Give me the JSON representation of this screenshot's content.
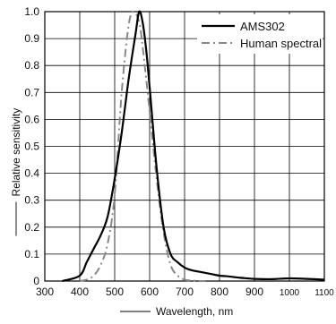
{
  "chart_data": {
    "type": "line",
    "xlabel": "Wavelength, nm",
    "ylabel": "Relative sensitivity",
    "xlim": [
      300,
      1100
    ],
    "ylim": [
      0,
      1.0
    ],
    "grid": true,
    "legend_position": "top-right",
    "x_ticks": [
      300,
      400,
      500,
      600,
      700,
      800,
      900,
      1000,
      1100
    ],
    "x_tick_labels": [
      "300",
      "400",
      "500",
      "600",
      "700",
      "800",
      "900",
      "1000",
      "1100"
    ],
    "y_ticks": [
      0,
      0.1,
      0.2,
      0.3,
      0.4,
      0.5,
      0.6,
      0.7,
      0.8,
      0.9,
      1.0
    ],
    "y_tick_labels": [
      "0",
      "0.1",
      "0.2",
      "0.3",
      "0.4",
      "0.5",
      "0.6",
      "0.7",
      "0.8",
      "0.9",
      "1.0"
    ],
    "series": [
      {
        "name": "AMS302",
        "style": "solid",
        "color": "#000000",
        "x": [
          350,
          400,
          420,
          440,
          460,
          480,
          500,
          520,
          540,
          560,
          570,
          580,
          590,
          600,
          620,
          640,
          660,
          680,
          700,
          720,
          740,
          760,
          780,
          800,
          820,
          840,
          860,
          880,
          900,
          950,
          1000,
          1050,
          1100
        ],
        "y": [
          0.0,
          0.02,
          0.07,
          0.12,
          0.17,
          0.24,
          0.38,
          0.55,
          0.75,
          0.92,
          1.0,
          0.96,
          0.86,
          0.72,
          0.42,
          0.2,
          0.1,
          0.07,
          0.05,
          0.04,
          0.035,
          0.03,
          0.025,
          0.02,
          0.018,
          0.015,
          0.012,
          0.01,
          0.008,
          0.007,
          0.01,
          0.008,
          0.005
        ]
      },
      {
        "name": "Human spectral",
        "style": "dash-dot",
        "color": "#888888",
        "x": [
          400,
          420,
          440,
          460,
          480,
          500,
          520,
          540,
          555,
          570,
          580,
          600,
          620,
          640,
          660,
          680,
          700,
          720,
          740,
          760
        ],
        "y": [
          0.0,
          0.005,
          0.02,
          0.06,
          0.14,
          0.32,
          0.7,
          0.95,
          1.0,
          0.96,
          0.87,
          0.63,
          0.38,
          0.18,
          0.06,
          0.02,
          0.005,
          0.002,
          0.0,
          0.0
        ]
      }
    ]
  }
}
